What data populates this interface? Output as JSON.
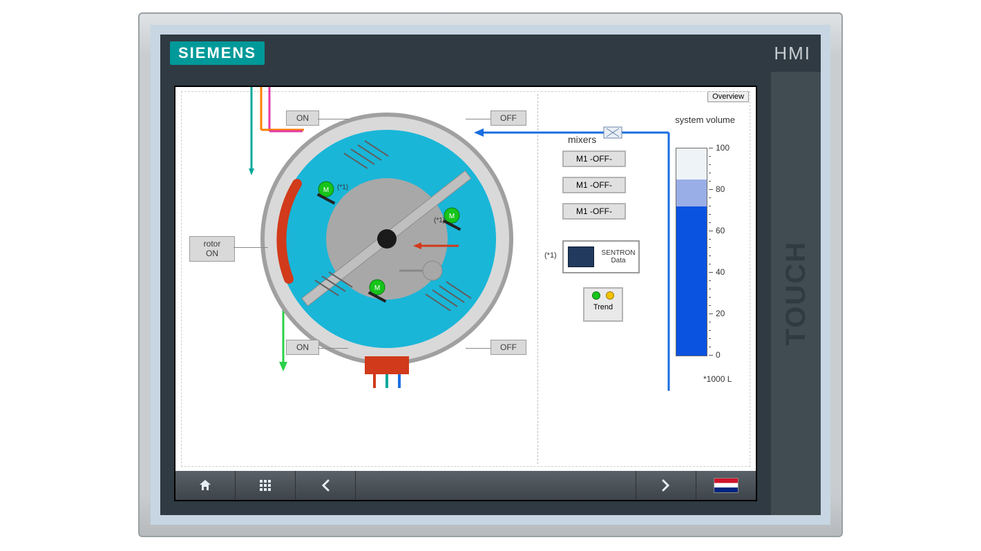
{
  "brand": {
    "logo_text": "SIEMENS",
    "hmi": "HMI",
    "side": "TOUCH",
    "logo_bg": "#009999",
    "logo_fg": "#ffffff"
  },
  "overview_btn": "Overview",
  "rotor_buttons": {
    "on_left_top": "ON",
    "off_right_top": "OFF",
    "on_left_bottom": "ON",
    "off_right_bottom": "OFF",
    "rotor_box_l1": "rotor",
    "rotor_box_l2": "ON"
  },
  "diagram": {
    "outer_ring_stroke": "#a0a0a0",
    "outer_ring_fill": "#d9d9d9",
    "fluid_fill": "#19b6d8",
    "hub_fill": "#a8a8a8",
    "needle_fill": "#bfbfbf",
    "arc_red": "#d13a1a",
    "base_red": "#d13a1a",
    "hatch": "#606060",
    "pipe_blue": "#1a6ee0",
    "pipe_orange": "#ff7f00",
    "pipe_teal": "#00a89a",
    "pipe_magenta": "#e33aa3",
    "pipe_green": "#2bd14a",
    "motor_green": "#17c41a",
    "motor_labels": {
      "m": "M"
    },
    "note": "(*1)"
  },
  "mixers": {
    "title": "mixers",
    "buttons": [
      "M1 -OFF-",
      "M1 -OFF-",
      "M1 -OFF-"
    ]
  },
  "sentron": {
    "label": "SENTRON\nData",
    "footnote": "(*1)"
  },
  "trend": {
    "label": "Trend",
    "led_colors": [
      "#17c41a",
      "#f2c200"
    ]
  },
  "system_volume": {
    "title": "system volume",
    "unit": "*1000 L",
    "ylim": [
      0,
      100
    ],
    "ticks": [
      0,
      20,
      40,
      60,
      80,
      100
    ],
    "light_top": 85,
    "fill_value": 72,
    "colors": {
      "track_border": "#6b6b6b",
      "track_bg": "#eef3f8",
      "light": "#99aee6",
      "fill": "#0a52e0"
    }
  },
  "nav": {
    "items": [
      "home",
      "grid",
      "back",
      "spacer",
      "forward",
      "lang"
    ]
  }
}
